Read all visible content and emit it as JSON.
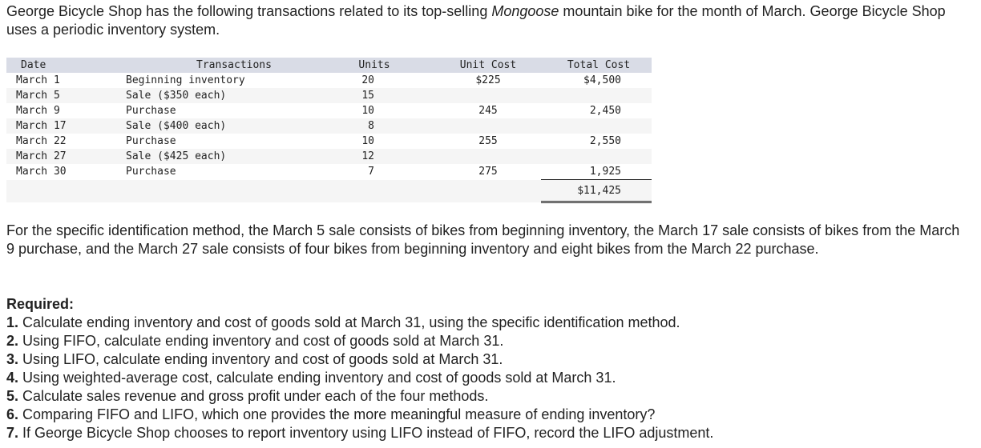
{
  "intro": {
    "text_before": "George Bicycle Shop has the following transactions related to its top-selling ",
    "italic": "Mongoose",
    "text_after": " mountain bike for the month of March. George Bicycle Shop uses a periodic inventory system."
  },
  "table": {
    "headers": {
      "date": "Date",
      "transactions": "Transactions",
      "units": "Units",
      "unit_cost": "Unit Cost",
      "total_cost": "Total Cost"
    },
    "rows": [
      {
        "date": "March 1",
        "transaction": "Beginning inventory",
        "units": "20",
        "unit_cost": "$225",
        "total_cost": "$4,500"
      },
      {
        "date": "March 5",
        "transaction": "Sale ($350 each)",
        "units": "15",
        "unit_cost": "",
        "total_cost": ""
      },
      {
        "date": "March 9",
        "transaction": "Purchase",
        "units": "10",
        "unit_cost": "245",
        "total_cost": "2,450"
      },
      {
        "date": "March 17",
        "transaction": "Sale ($400 each)",
        "units": "8",
        "unit_cost": "",
        "total_cost": ""
      },
      {
        "date": "March 22",
        "transaction": "Purchase",
        "units": "10",
        "unit_cost": "255",
        "total_cost": "2,550"
      },
      {
        "date": "March 27",
        "transaction": "Sale ($425 each)",
        "units": "12",
        "unit_cost": "",
        "total_cost": ""
      },
      {
        "date": "March 30",
        "transaction": "Purchase",
        "units": "7",
        "unit_cost": "275",
        "total_cost": "1,925"
      }
    ],
    "total": "$11,425"
  },
  "note": "For the specific identification method, the March 5 sale consists of bikes from beginning inventory, the March 17 sale consists of bikes from the March 9 purchase, and the March 27 sale consists of four bikes from beginning inventory and eight bikes from the March 22 purchase.",
  "required": {
    "title": "Required:",
    "items": [
      {
        "num": "1.",
        "text": " Calculate ending inventory and cost of goods sold at March 31, using the specific identification method."
      },
      {
        "num": "2.",
        "text": " Using FIFO, calculate ending inventory and cost of goods sold at March 31."
      },
      {
        "num": "3.",
        "text": " Using LIFO, calculate ending inventory and cost of goods sold at March 31."
      },
      {
        "num": "4.",
        "text": " Using weighted-average cost, calculate ending inventory and cost of goods sold at March 31."
      },
      {
        "num": "5.",
        "text": " Calculate sales revenue and gross profit under each of the four methods."
      },
      {
        "num": "6.",
        "text": " Comparing FIFO and LIFO, which one provides the more meaningful measure of ending inventory?"
      },
      {
        "num": "7.",
        "text": " If George Bicycle Shop chooses to report inventory using LIFO instead of FIFO, record the LIFO adjustment."
      }
    ]
  }
}
